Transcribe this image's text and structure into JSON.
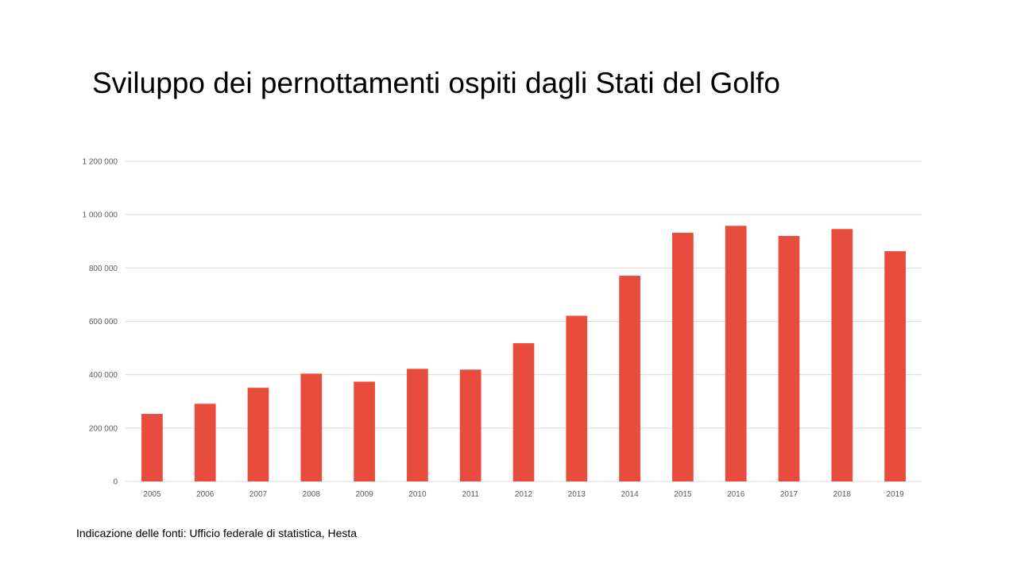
{
  "slide": {
    "source_note": "Indicazione delle fonti: Ufficio federale di statistica, Hesta"
  },
  "chart_data": {
    "type": "bar",
    "title": "Sviluppo dei pernottamenti ospiti dagli Stati del Golfo",
    "xlabel": "",
    "ylabel": "",
    "categories": [
      "2005",
      "2006",
      "2007",
      "2008",
      "2009",
      "2010",
      "2011",
      "2012",
      "2013",
      "2014",
      "2015",
      "2016",
      "2017",
      "2018",
      "2019"
    ],
    "values": [
      253000,
      291000,
      351000,
      404000,
      374000,
      422000,
      419000,
      518000,
      621000,
      771000,
      932000,
      958000,
      920000,
      946000,
      863000
    ],
    "ylim": [
      0,
      1200000
    ],
    "yticks": [
      0,
      200000,
      400000,
      600000,
      800000,
      1000000,
      1200000
    ],
    "ytick_labels": [
      "0",
      "200 000",
      "400 000",
      "600 000",
      "800 000",
      "1 000 000",
      "1 200 000"
    ],
    "grid": true,
    "legend": "none",
    "bar_color": "#E84C3D",
    "grid_color": "#D9D9D9",
    "label_color": "#595959"
  }
}
